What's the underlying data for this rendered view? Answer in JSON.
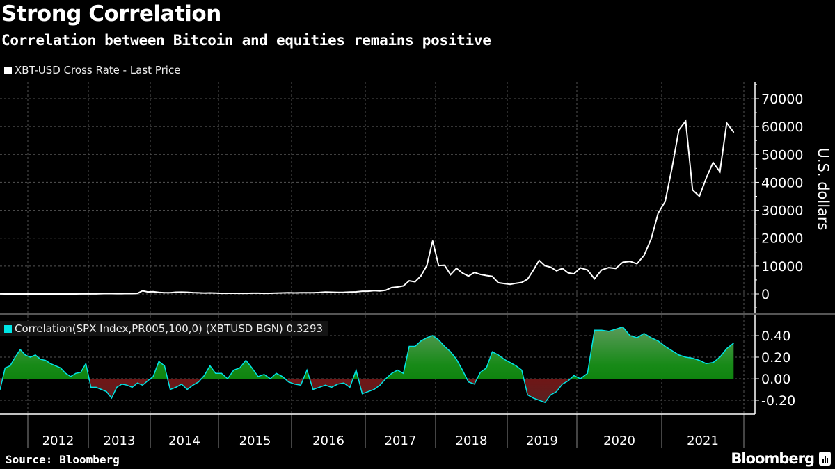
{
  "title": "Strong Correlation",
  "subtitle": "Correlation between Bitcoin and equities remains positive",
  "source": "Source: Bloomberg",
  "logo": "Bloomberg",
  "chart_data": [
    {
      "type": "line",
      "legend": "XBT-USD Cross Rate - Last Price",
      "series_color": "#ffffff",
      "ylabel": "U.S. dollars",
      "ylim": [
        -6000,
        76000
      ],
      "yticks": [
        "0",
        "10000",
        "20000",
        "30000",
        "40000",
        "50000",
        "60000",
        "70000"
      ],
      "grid": true,
      "dates": [
        "2011-07",
        "2011-08",
        "2011-09",
        "2011-10",
        "2011-11",
        "2011-12",
        "2012-01",
        "2012-02",
        "2012-03",
        "2012-04",
        "2012-05",
        "2012-06",
        "2012-07",
        "2012-08",
        "2012-09",
        "2012-10",
        "2012-11",
        "2012-12",
        "2013-01",
        "2013-02",
        "2013-03",
        "2013-04",
        "2013-05",
        "2013-06",
        "2013-07",
        "2013-08",
        "2013-09",
        "2013-10",
        "2013-11",
        "2013-12",
        "2014-01",
        "2014-02",
        "2014-03",
        "2014-04",
        "2014-05",
        "2014-06",
        "2014-07",
        "2014-08",
        "2014-09",
        "2014-10",
        "2014-11",
        "2014-12",
        "2015-01",
        "2015-02",
        "2015-03",
        "2015-04",
        "2015-05",
        "2015-06",
        "2015-07",
        "2015-08",
        "2015-09",
        "2015-10",
        "2015-11",
        "2015-12",
        "2016-01",
        "2016-02",
        "2016-03",
        "2016-04",
        "2016-05",
        "2016-06",
        "2016-07",
        "2016-08",
        "2016-09",
        "2016-10",
        "2016-11",
        "2016-12",
        "2017-01",
        "2017-02",
        "2017-03",
        "2017-04",
        "2017-05",
        "2017-06",
        "2017-07",
        "2017-08",
        "2017-09",
        "2017-10",
        "2017-11",
        "2017-12",
        "2018-01",
        "2018-02",
        "2018-03",
        "2018-04",
        "2018-05",
        "2018-06",
        "2018-07",
        "2018-08",
        "2018-09",
        "2018-10",
        "2018-11",
        "2018-12",
        "2019-01",
        "2019-02",
        "2019-03",
        "2019-04",
        "2019-05",
        "2019-06",
        "2019-07",
        "2019-08",
        "2019-09",
        "2019-10",
        "2019-11",
        "2019-12",
        "2020-01",
        "2020-02",
        "2020-03",
        "2020-04",
        "2020-05",
        "2020-06",
        "2020-07",
        "2020-08",
        "2020-09",
        "2020-10",
        "2020-11",
        "2020-12",
        "2021-01",
        "2021-02",
        "2021-03",
        "2021-04",
        "2021-05",
        "2021-06",
        "2021-07",
        "2021-08",
        "2021-09",
        "2021-10",
        "2021-11"
      ],
      "values": [
        14,
        8,
        5,
        3,
        3,
        5,
        6,
        5,
        5,
        5,
        5,
        7,
        9,
        10,
        12,
        11,
        13,
        14,
        20,
        33,
        93,
        139,
        129,
        97,
        106,
        141,
        133,
        198,
        1130,
        730,
        800,
        550,
        450,
        450,
        620,
        640,
        590,
        480,
        390,
        330,
        380,
        320,
        220,
        250,
        245,
        235,
        230,
        263,
        284,
        230,
        237,
        313,
        378,
        430,
        370,
        437,
        416,
        448,
        531,
        670,
        624,
        575,
        608,
        700,
        742,
        960,
        970,
        1190,
        1080,
        1350,
        2300,
        2480,
        2870,
        4700,
        4340,
        6470,
        10200,
        19000,
        10200,
        10300,
        6900,
        9200,
        7500,
        6400,
        7700,
        7000,
        6600,
        6300,
        4000,
        3700,
        3450,
        3800,
        4100,
        5300,
        8500,
        12000,
        10100,
        9600,
        8300,
        9150,
        7550,
        7200,
        9350,
        8600,
        5400,
        8600,
        9450,
        9150,
        11350,
        11650,
        10800,
        13800,
        19700,
        29000,
        33100,
        45200,
        58800,
        62000,
        37300,
        35000,
        41500,
        47100,
        43800,
        61300,
        58000
      ]
    },
    {
      "type": "area",
      "legend": "Correlation(SPX Index,PR005,100,0) (XBTUSD BGN) 0.3293",
      "series_color": "#00e5e5",
      "positive_fill": "#0a8a0a",
      "negative_fill": "#8b0000",
      "ylim": [
        -0.33,
        0.55
      ],
      "yticks": [
        "0.40",
        "0.20",
        "0.00",
        "-0.20"
      ],
      "grid": true,
      "values": [
        -0.1,
        0.1,
        0.12,
        0.2,
        0.27,
        0.22,
        0.2,
        0.22,
        0.18,
        0.17,
        0.14,
        0.12,
        0.1,
        0.05,
        0.02,
        0.05,
        0.06,
        0.14,
        -0.08,
        -0.08,
        -0.1,
        -0.12,
        -0.18,
        -0.08,
        -0.05,
        -0.06,
        -0.08,
        -0.04,
        -0.06,
        -0.02,
        0.02,
        0.16,
        0.12,
        -0.1,
        -0.08,
        -0.05,
        -0.1,
        -0.06,
        -0.03,
        0.03,
        0.12,
        0.05,
        0.05,
        0.0,
        0.08,
        0.1,
        0.17,
        0.1,
        0.02,
        0.04,
        0.0,
        0.05,
        0.02,
        -0.03,
        -0.05,
        -0.06,
        0.08,
        -0.1,
        -0.08,
        -0.06,
        -0.08,
        -0.05,
        -0.04,
        -0.08,
        0.08,
        -0.14,
        -0.12,
        -0.1,
        -0.06,
        0.0,
        0.05,
        0.08,
        0.05,
        0.3,
        0.3,
        0.35,
        0.38,
        0.4,
        0.36,
        0.3,
        0.25,
        0.18,
        0.08,
        -0.03,
        -0.05,
        0.06,
        0.1,
        0.25,
        0.22,
        0.18,
        0.15,
        0.12,
        0.08,
        -0.15,
        -0.18,
        -0.2,
        -0.22,
        -0.15,
        -0.12,
        -0.05,
        -0.02,
        0.03,
        0.0,
        0.05,
        0.45,
        0.45,
        0.44,
        0.46,
        0.48,
        0.4,
        0.38,
        0.42,
        0.38,
        0.35,
        0.3,
        0.26,
        0.22,
        0.2,
        0.19,
        0.17,
        0.14,
        0.15,
        0.2,
        0.28,
        0.33
      ]
    }
  ],
  "xaxis": {
    "tick_labels": [
      "2012",
      "2013",
      "2014",
      "2015",
      "2016",
      "2017",
      "2018",
      "2019",
      "2020",
      "2021"
    ]
  }
}
